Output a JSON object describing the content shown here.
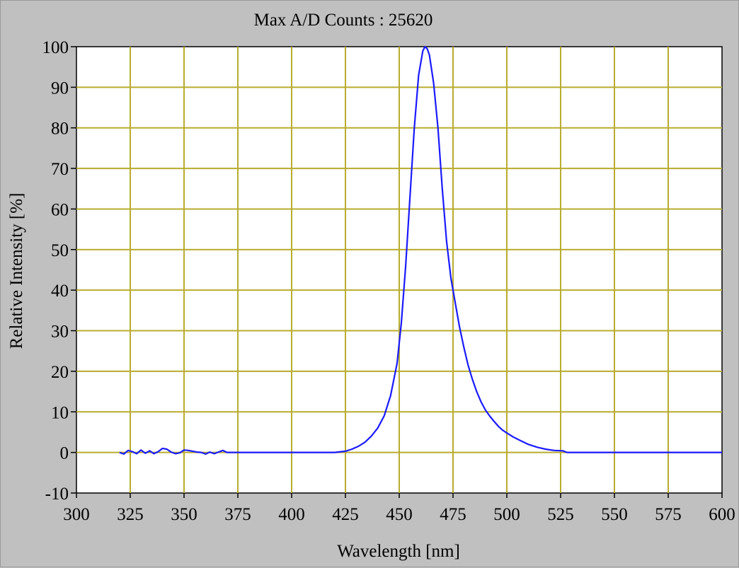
{
  "chart_data": {
    "type": "line",
    "title": "Max A/D Counts : 25620",
    "xlabel": "Wavelength [nm]",
    "ylabel": "Relative Intensity [%]",
    "xlim": [
      300,
      600
    ],
    "ylim": [
      -10,
      100
    ],
    "x_ticks": [
      300,
      325,
      350,
      375,
      400,
      425,
      450,
      475,
      500,
      525,
      550,
      575,
      600
    ],
    "y_ticks": [
      -10,
      0,
      10,
      20,
      30,
      40,
      50,
      60,
      70,
      80,
      90,
      100
    ],
    "grid": true,
    "colors": {
      "background": "#c0c0c0",
      "plot_area": "#ffffff",
      "grid": "#b8ac2e",
      "line": "#1a1aff"
    },
    "series": [
      {
        "x": [
          320,
          322,
          324,
          326,
          328,
          330,
          332,
          334,
          336,
          338,
          340,
          342,
          344,
          346,
          348,
          350,
          352,
          354,
          356,
          358,
          360,
          362,
          364,
          366,
          368,
          370,
          380,
          400,
          420,
          425,
          428,
          431,
          434,
          437,
          440,
          443,
          446,
          449,
          451,
          453,
          455,
          457,
          459,
          461,
          462,
          463,
          464,
          466,
          468,
          470,
          472,
          474,
          476,
          478,
          480,
          482,
          484,
          486,
          488,
          490,
          492,
          494,
          496,
          498,
          500,
          503,
          506,
          510,
          514,
          518,
          522,
          526,
          528,
          540,
          560,
          580,
          600
        ],
        "y": [
          0,
          -0.4,
          0.5,
          0.2,
          -0.3,
          0.6,
          -0.2,
          0.4,
          -0.3,
          0.2,
          1.0,
          0.8,
          0.1,
          -0.3,
          -0.1,
          0.6,
          0.5,
          0.3,
          0.1,
          0.0,
          -0.4,
          0.1,
          -0.3,
          0.1,
          0.5,
          0.0,
          0.0,
          0.0,
          0.0,
          0.3,
          0.8,
          1.5,
          2.5,
          4.0,
          6.0,
          9.0,
          14.0,
          22.0,
          32.0,
          46.0,
          63.0,
          80.0,
          93.0,
          99.0,
          100.0,
          99.5,
          98.0,
          91.0,
          80.0,
          65.0,
          52.0,
          43.0,
          37.0,
          31.0,
          26.0,
          21.5,
          18.0,
          15.0,
          12.5,
          10.5,
          9.0,
          7.7,
          6.5,
          5.5,
          4.8,
          3.8,
          3.0,
          2.0,
          1.3,
          0.8,
          0.5,
          0.4,
          0.0,
          0.0,
          0.0,
          0.0,
          0.0
        ]
      }
    ]
  }
}
